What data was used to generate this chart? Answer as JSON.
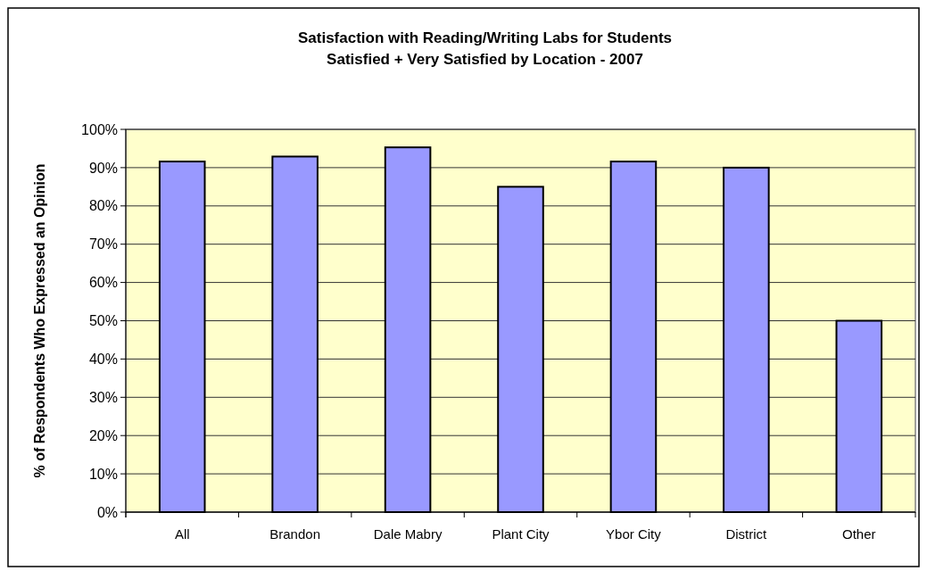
{
  "chart_data": {
    "type": "bar",
    "title": "Satisfaction with Reading/Writing Labs for Students",
    "subtitle": "Satisfied + Very Satisfied by Location - 2007",
    "ylabel": "% of Respondents Who Expressed an Opinion",
    "categories": [
      "All",
      "Brandon",
      "Dale Mabry",
      "Plant City",
      "Ybor City",
      "District",
      "Other"
    ],
    "values": [
      91.6,
      92.9,
      95.3,
      85,
      91.6,
      90,
      50
    ],
    "color": "#9999ff",
    "ylim": [
      0,
      100
    ],
    "yticks": [
      {
        "value": 0,
        "label": "0%"
      },
      {
        "value": 10,
        "label": "10%"
      },
      {
        "value": 20,
        "label": "20%"
      },
      {
        "value": 30,
        "label": "30%"
      },
      {
        "value": 40,
        "label": "40%"
      },
      {
        "value": 50,
        "label": "50%"
      },
      {
        "value": 60,
        "label": "60%"
      },
      {
        "value": 70,
        "label": "70%"
      },
      {
        "value": 80,
        "label": "80%"
      },
      {
        "value": 90,
        "label": "90%"
      },
      {
        "value": 100,
        "label": "100%"
      }
    ],
    "grid": "y"
  }
}
